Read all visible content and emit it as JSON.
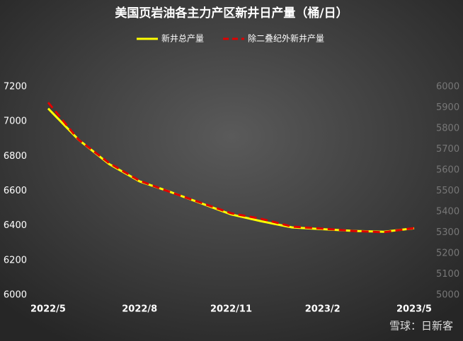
{
  "chart_data": {
    "type": "line",
    "title": "美国页岩油各主力产区新井日产量（桶/日）",
    "categories": [
      "2022/5",
      null,
      null,
      "2022/8",
      null,
      null,
      "2022/11",
      null,
      null,
      "2023/2",
      null,
      null,
      "2023/5"
    ],
    "series": [
      {
        "name": "新井总产量",
        "color": "#ffff00",
        "axis": "y",
        "values": [
          7075,
          6895,
          6755,
          6655,
          6595,
          6530,
          6465,
          6425,
          6390,
          6380,
          6370,
          6365,
          6385
        ]
      },
      {
        "name": "除二叠纪外新井产量",
        "color": "#e00000",
        "axis": "y2",
        "dashed": true,
        "values": [
          5925,
          5746,
          5634,
          5549,
          5495,
          5444,
          5393,
          5366,
          5329,
          5319,
          5308,
          5302,
          5322
        ]
      }
    ],
    "ylim": [
      6000,
      7200
    ],
    "yticks": [
      6000,
      6200,
      6400,
      6600,
      6800,
      7000,
      7200
    ],
    "y2lim": [
      5000,
      6000
    ],
    "y2ticks": [
      5000,
      5100,
      5200,
      5300,
      5400,
      5500,
      5600,
      5700,
      5800,
      5900,
      6000
    ],
    "watermark": "雪球：日新客"
  }
}
